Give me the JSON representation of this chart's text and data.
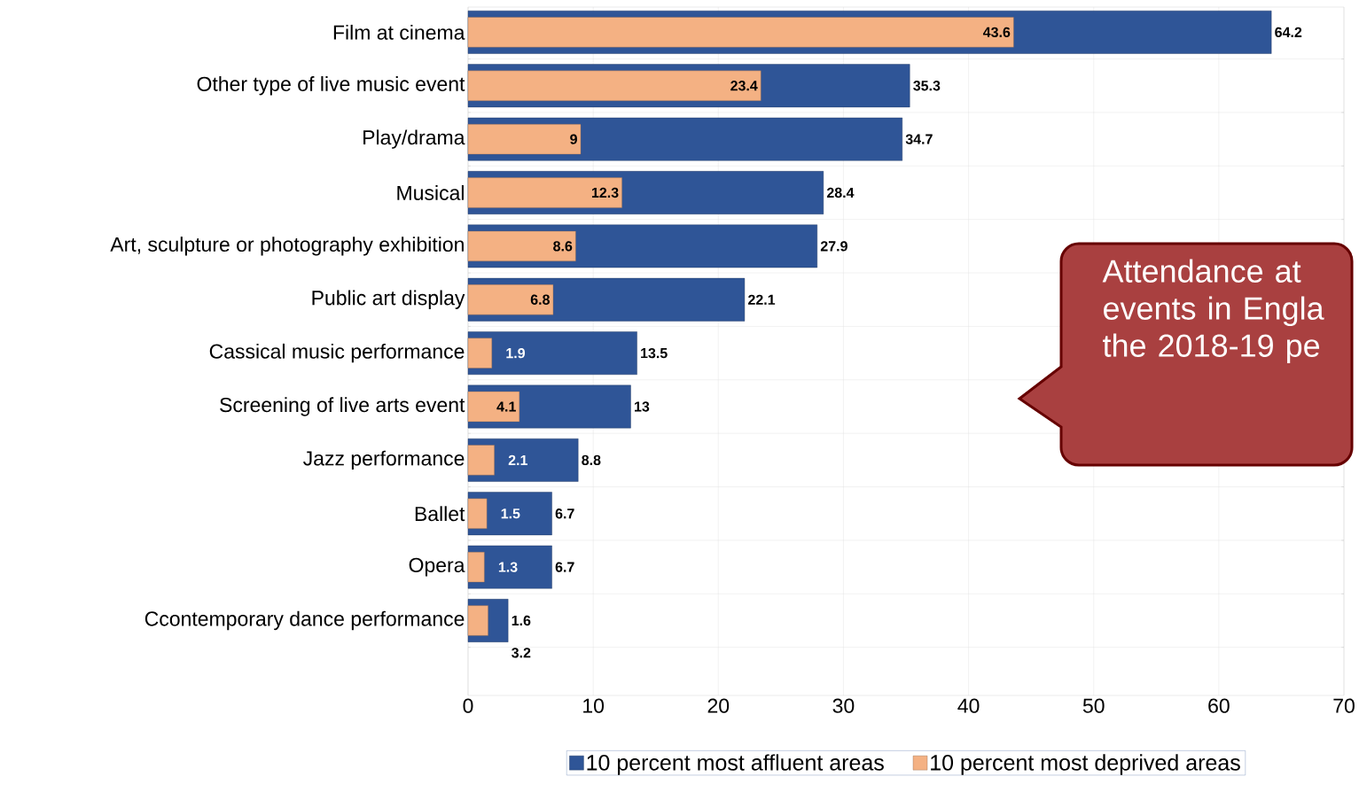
{
  "chart_data": {
    "type": "bar",
    "orientation": "horizontal",
    "categories": [
      "Film at cinema",
      "Other type of live music event",
      "Play/drama",
      "Musical",
      "Art, sculpture or photography exhibition",
      "Public art display",
      "Cassical music performance",
      "Screening of live arts event",
      "Jazz performance",
      "Ballet",
      "Opera",
      "Ccontemporary dance performance"
    ],
    "series": [
      {
        "name": "10 percent most affluent areas",
        "color": "#2f5597",
        "values": [
          64.2,
          35.3,
          34.7,
          28.4,
          27.9,
          22.1,
          13.5,
          13,
          8.8,
          6.7,
          6.7,
          3.2
        ]
      },
      {
        "name": "10 percent most deprived areas",
        "color": "#f4b183",
        "values": [
          43.6,
          23.4,
          9,
          12.3,
          8.6,
          6.8,
          1.9,
          4.1,
          2.1,
          1.5,
          1.3,
          1.6
        ]
      }
    ],
    "xlim": [
      0,
      70
    ],
    "xticks": [
      0,
      10,
      20,
      30,
      40,
      50,
      60,
      70
    ],
    "grid": true,
    "legend": "bottom",
    "data_labels": true,
    "annotations": [
      "Attendance at events in Engla the 2018-19 pe"
    ]
  }
}
